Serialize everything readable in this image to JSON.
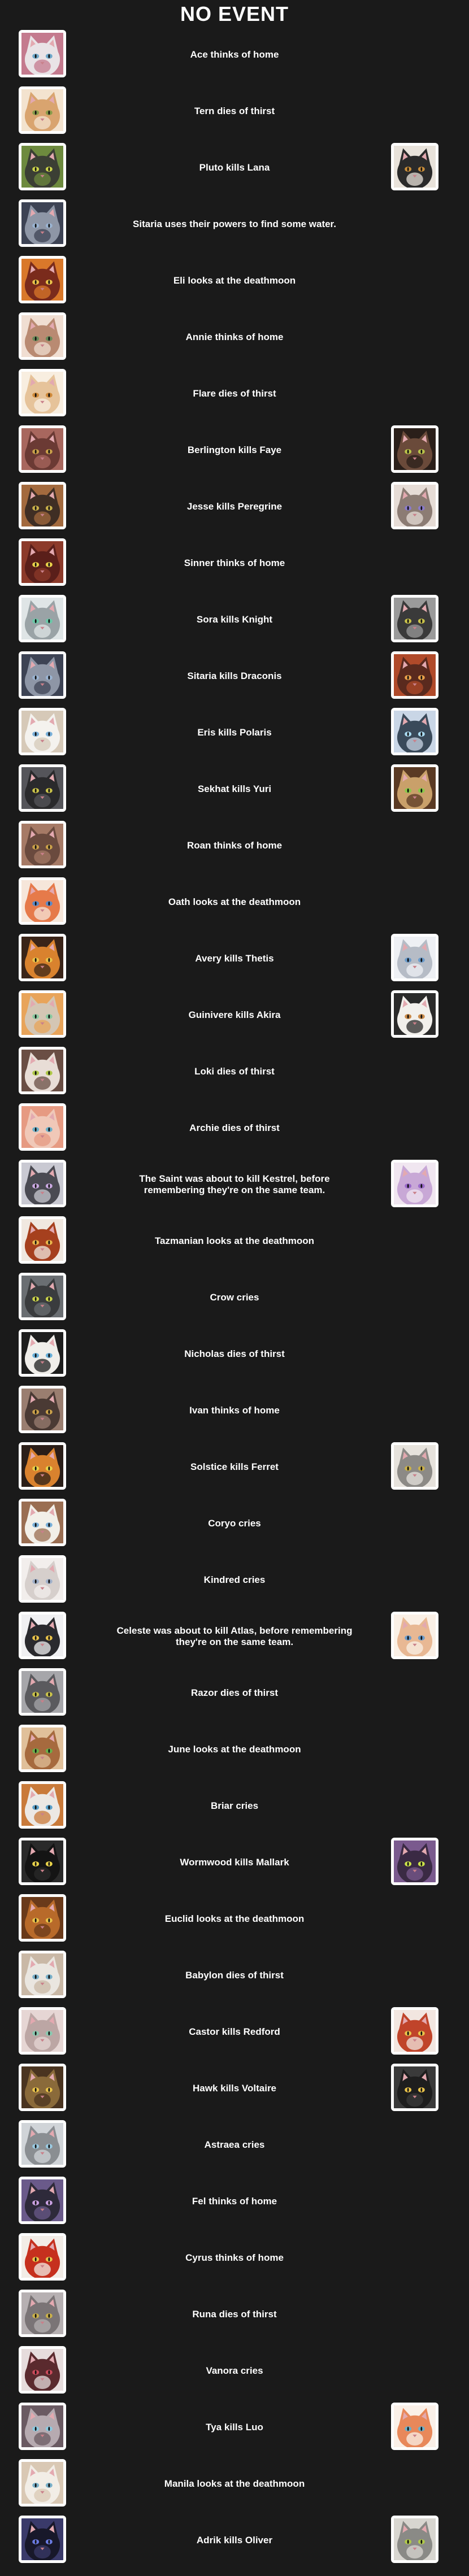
{
  "header": {
    "title": "NO EVENT"
  },
  "events": [
    {
      "text": "Ace thinks of home",
      "actor": {
        "fur": "#e9e3e6",
        "accent": "#c47a8e",
        "eye": "#6fa8c9"
      },
      "target": null
    },
    {
      "text": "Tern dies of thirst",
      "actor": {
        "fur": "#d9a46f",
        "accent": "#f3e3cf",
        "eye": "#8a9c4a"
      },
      "target": null
    },
    {
      "text": "Pluto kills Lana",
      "actor": {
        "fur": "#3b3f34",
        "accent": "#6d8a3e",
        "eye": "#c9d24a"
      },
      "target": {
        "fur": "#2a2a2a",
        "accent": "#e8e2da",
        "eye": "#c68c3a"
      }
    },
    {
      "text": "Sitaria uses their powers to find some water.",
      "actor": {
        "fur": "#8e96a6",
        "accent": "#3d4354",
        "eye": "#9ab3d1"
      },
      "target": null
    },
    {
      "text": "Eli looks at the deathmoon",
      "actor": {
        "fur": "#7a2b1c",
        "accent": "#d9782a",
        "eye": "#e8c14a"
      },
      "target": null
    },
    {
      "text": "Annie thinks of home",
      "actor": {
        "fur": "#b98a72",
        "accent": "#f0ded2",
        "eye": "#6a8a5a"
      },
      "target": null
    },
    {
      "text": "Flare dies of thirst",
      "actor": {
        "fur": "#e6c39a",
        "accent": "#f8eee0",
        "eye": "#d08a3a"
      },
      "target": null
    },
    {
      "text": "Berlington kills Faye",
      "actor": {
        "fur": "#6b3a34",
        "accent": "#a8675e",
        "eye": "#c9a04a"
      },
      "target": {
        "fur": "#6a4a3a",
        "accent": "#2a1f1a",
        "eye": "#b9c24a"
      }
    },
    {
      "text": "Jesse kills Peregrine",
      "actor": {
        "fur": "#3f2e24",
        "accent": "#a36a3e",
        "eye": "#c9b04a"
      },
      "target": {
        "fur": "#8c7c74",
        "accent": "#e6dcd6",
        "eye": "#8a7ac9"
      }
    },
    {
      "text": "Sinner thinks of home",
      "actor": {
        "fur": "#5a1f1a",
        "accent": "#8c3a2a",
        "eye": "#e8d24a"
      },
      "target": null
    },
    {
      "text": "Sora kills Knight",
      "actor": {
        "fur": "#9aa3a6",
        "accent": "#dfe5e6",
        "eye": "#6ac9a8"
      },
      "target": {
        "fur": "#3a3a3a",
        "accent": "#9a9a9a",
        "eye": "#c9c24a"
      }
    },
    {
      "text": "Sitaria kills Draconis",
      "actor": {
        "fur": "#8e96a6",
        "accent": "#3d4354",
        "eye": "#9ab3d1"
      },
      "target": {
        "fur": "#5a2a1e",
        "accent": "#b04a2a",
        "eye": "#e8a04a"
      }
    },
    {
      "text": "Eris kills Polaris",
      "actor": {
        "fur": "#f4f2ee",
        "accent": "#d6c9b8",
        "eye": "#7ab0d9"
      },
      "target": {
        "fur": "#3a4a5a",
        "accent": "#c9d6e6",
        "eye": "#a8d9f0"
      }
    },
    {
      "text": "Sekhat kills Yuri",
      "actor": {
        "fur": "#2a2a2c",
        "accent": "#55555a",
        "eye": "#c9c24a"
      },
      "target": {
        "fur": "#c9a06a",
        "accent": "#5a3a24",
        "eye": "#8ac94a"
      }
    },
    {
      "text": "Roan thinks of home",
      "actor": {
        "fur": "#6a4a3e",
        "accent": "#a67a66",
        "eye": "#c9a04a"
      },
      "target": null
    },
    {
      "text": "Oath looks at the deathmoon",
      "actor": {
        "fur": "#e67a4a",
        "accent": "#f6e6da",
        "eye": "#5a8ac9"
      },
      "target": null
    },
    {
      "text": "Avery kills Thetis",
      "actor": {
        "fur": "#d9822e",
        "accent": "#3a2418",
        "eye": "#e8c24a"
      },
      "target": {
        "fur": "#b6bcc6",
        "accent": "#eef0f4",
        "eye": "#6a9ac9"
      }
    },
    {
      "text": "Guinivere kills Akira",
      "actor": {
        "fur": "#d4c6b4",
        "accent": "#e8a45a",
        "eye": "#8ac9a0"
      },
      "target": {
        "fur": "#f2f0ec",
        "accent": "#2a2a2a",
        "eye": "#c98a4a"
      }
    },
    {
      "text": "Loki dies of thirst",
      "actor": {
        "fur": "#e8ddd6",
        "accent": "#6a4e44",
        "eye": "#b0c94a"
      },
      "target": null
    },
    {
      "text": "Archie dies of thirst",
      "actor": {
        "fur": "#f0c8b8",
        "accent": "#e69a82",
        "eye": "#6ab0c9"
      },
      "target": null
    },
    {
      "text": "The Saint was about to kill Kestrel, before remembering they're on the same team.",
      "actor": {
        "fur": "#4a4a52",
        "accent": "#c9c9d2",
        "eye": "#c9a8e0"
      },
      "target": {
        "fur": "#c8a8d6",
        "accent": "#f0e6f0",
        "eye": "#9a6ac9"
      }
    },
    {
      "text": "Tazmanian looks at the deathmoon",
      "actor": {
        "fur": "#a6401e",
        "accent": "#f0e8e0",
        "eye": "#e8b44a"
      },
      "target": null
    },
    {
      "text": "Crow cries",
      "actor": {
        "fur": "#3a3c3e",
        "accent": "#6a6e72",
        "eye": "#c9d24a"
      },
      "target": null
    },
    {
      "text": "Nicholas dies of thirst",
      "actor": {
        "fur": "#f0eeea",
        "accent": "#1e1e1e",
        "eye": "#6ab0d9"
      },
      "target": null
    },
    {
      "text": "Ivan thinks of home",
      "actor": {
        "fur": "#4a3a34",
        "accent": "#9a7e70",
        "eye": "#c9a04a"
      },
      "target": null
    },
    {
      "text": "Solstice kills Ferret",
      "actor": {
        "fur": "#d9822e",
        "accent": "#2a1e18",
        "eye": "#e8d24a"
      },
      "target": {
        "fur": "#8c8a86",
        "accent": "#e6e2dc",
        "eye": "#c9b04a"
      }
    },
    {
      "text": "Coryo cries",
      "actor": {
        "fur": "#f2efe8",
        "accent": "#9a6e52",
        "eye": "#7ab0d9"
      },
      "target": null
    },
    {
      "text": "Kindred cries",
      "actor": {
        "fur": "#d6cfcc",
        "accent": "#f2eeec",
        "eye": "#a0b0c9"
      },
      "target": null
    },
    {
      "text": "Celeste was about to kill Atlas, before remembering they're on the same team.",
      "actor": {
        "fur": "#2a2a2e",
        "accent": "#f0f0f2",
        "eye": "#e8c24a"
      },
      "target": {
        "fur": "#e8b894",
        "accent": "#faf0e6",
        "eye": "#6a9ac9"
      }
    },
    {
      "text": "Razor dies of thirst",
      "actor": {
        "fur": "#5a5a5e",
        "accent": "#a6a6aa",
        "eye": "#c9c24a"
      },
      "target": null
    },
    {
      "text": "June looks at the deathmoon",
      "actor": {
        "fur": "#a66a3e",
        "accent": "#e0c09a",
        "eye": "#6ab04a"
      },
      "target": null
    },
    {
      "text": "Briar cries",
      "actor": {
        "fur": "#ece8e4",
        "accent": "#c97a3a",
        "eye": "#5aa0c9"
      },
      "target": null
    },
    {
      "text": "Wormwood kills Mallark",
      "actor": {
        "fur": "#141414",
        "accent": "#2a2a2a",
        "eye": "#e8d24a"
      },
      "target": {
        "fur": "#3a2a44",
        "accent": "#7a5a8e",
        "eye": "#c9e04a"
      }
    },
    {
      "text": "Euclid looks at the deathmoon",
      "actor": {
        "fur": "#b86a2a",
        "accent": "#6a3a1a",
        "eye": "#e8c24a"
      },
      "target": null
    },
    {
      "text": "Babylon dies of thirst",
      "actor": {
        "fur": "#eae6e0",
        "accent": "#c9b8a6",
        "eye": "#7ab0c9"
      },
      "target": null
    },
    {
      "text": "Castor kills Redford",
      "actor": {
        "fur": "#bca6a4",
        "accent": "#e6d6d4",
        "eye": "#8ac9b0"
      },
      "target": {
        "fur": "#c0442a",
        "accent": "#f2e6e0",
        "eye": "#e8c24a"
      }
    },
    {
      "text": "Hawk kills Voltaire",
      "actor": {
        "fur": "#8a6a3a",
        "accent": "#4a3420",
        "eye": "#e8c24a"
      },
      "target": {
        "fur": "#1e1e1e",
        "accent": "#3a3a3a",
        "eye": "#e8c24a"
      }
    },
    {
      "text": "Astraea cries",
      "actor": {
        "fur": "#8a8e92",
        "accent": "#d0d4d8",
        "eye": "#9ac9e0"
      },
      "target": null
    },
    {
      "text": "Fel thinks of home",
      "actor": {
        "fur": "#2e2a3a",
        "accent": "#6a5a8a",
        "eye": "#c9a0e0"
      },
      "target": null
    },
    {
      "text": "Cyrus thinks of home",
      "actor": {
        "fur": "#c6301e",
        "accent": "#f2ece6",
        "eye": "#e8c24a"
      },
      "target": null
    },
    {
      "text": "Runa dies of thirst",
      "actor": {
        "fur": "#7a7476",
        "accent": "#b6b0b2",
        "eye": "#c9b04a"
      },
      "target": null
    },
    {
      "text": "Vanora cries",
      "actor": {
        "fur": "#5a2a2e",
        "accent": "#e6dcdc",
        "eye": "#c94a5a"
      },
      "target": null
    },
    {
      "text": "Tya kills Luo",
      "actor": {
        "fur": "#b6aab0",
        "accent": "#6a5a62",
        "eye": "#8ac9e0"
      },
      "target": {
        "fur": "#e8885a",
        "accent": "#faf0e8",
        "eye": "#6ab0c9"
      }
    },
    {
      "text": "Manila looks at the deathmoon",
      "actor": {
        "fur": "#f2ede6",
        "accent": "#d9c8b4",
        "eye": "#7ab0c9"
      },
      "target": null
    },
    {
      "text": "Adrik kills Oliver",
      "actor": {
        "fur": "#18182a",
        "accent": "#3a3a6a",
        "eye": "#6a7ae0"
      },
      "target": {
        "fur": "#8a8a86",
        "accent": "#d8d6d0",
        "eye": "#b0c94a"
      }
    }
  ]
}
